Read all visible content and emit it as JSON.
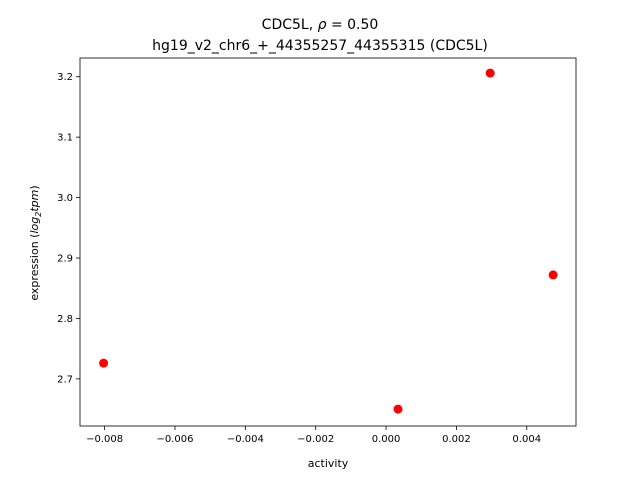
{
  "chart_data": {
    "type": "scatter",
    "title_line1_prefix": "CDC5L, ",
    "title_line1_symbol": "ρ",
    "title_line1_suffix": " = 0.50",
    "title_line2": "hg19_v2_chr6_+_44355257_44355315 (CDC5L)",
    "xlabel": "activity",
    "ylabel_prefix": "expression (",
    "ylabel_log": "log",
    "ylabel_sub": "2",
    "ylabel_tpm": "tpm",
    "ylabel_suffix": ")",
    "xlim": [
      -0.0087,
      0.0054
    ],
    "ylim": [
      2.622,
      3.231
    ],
    "xticks": [
      -0.008,
      -0.006,
      -0.004,
      -0.002,
      0.0,
      0.002,
      0.004
    ],
    "xtick_labels": [
      "−0.008",
      "−0.006",
      "−0.004",
      "−0.002",
      "0.000",
      "0.002",
      "0.004"
    ],
    "yticks": [
      2.7,
      2.8,
      2.9,
      3.0,
      3.1,
      3.2
    ],
    "ytick_labels": [
      "2.7",
      "2.8",
      "2.9",
      "3.0",
      "3.1",
      "3.2"
    ],
    "grid": false,
    "marker_color": "#ff0000",
    "points": [
      {
        "x": -0.00803,
        "y": 2.726
      },
      {
        "x": 0.00034,
        "y": 2.65
      },
      {
        "x": 0.00296,
        "y": 3.206
      },
      {
        "x": 0.00475,
        "y": 2.872
      }
    ]
  }
}
